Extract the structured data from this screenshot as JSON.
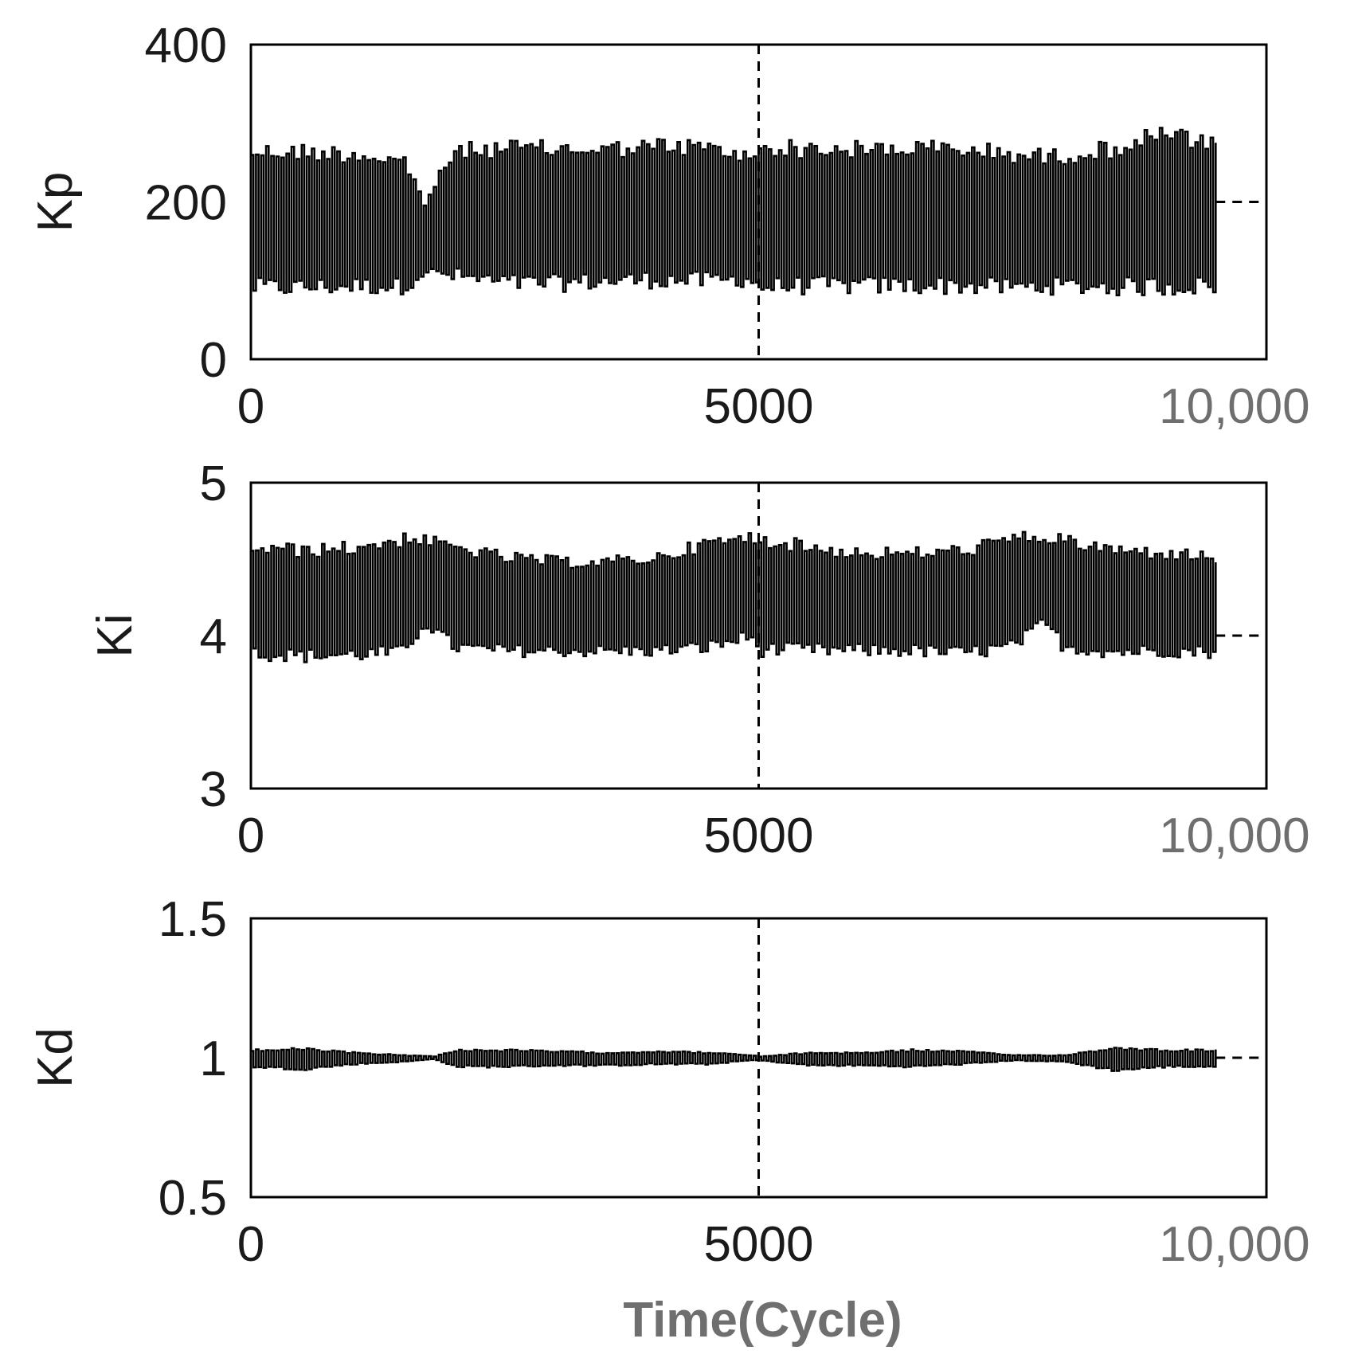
{
  "chart_data": [
    {
      "type": "line",
      "ylabel": "Kp",
      "xlim": [
        0,
        10000
      ],
      "ylim": [
        0,
        400
      ],
      "xticks": [
        "0",
        "5000",
        "10,000"
      ],
      "yticks": [
        "400",
        "200",
        "0"
      ],
      "xtick_values": [
        0,
        5000,
        10000
      ],
      "ytick_values": [
        400,
        200,
        0
      ],
      "vline_x": 5000,
      "hline_y": 200,
      "series": [
        {
          "x_range": [
            0,
            9500
          ],
          "x": [
            0,
            500,
            1000,
            1500,
            1700,
            2000,
            2500,
            3000,
            3500,
            4000,
            4500,
            4900,
            5000,
            5500,
            6000,
            6500,
            7000,
            7500,
            7800,
            8000,
            8500,
            9000,
            9500
          ],
          "max": [
            275,
            275,
            272,
            262,
            205,
            275,
            280,
            278,
            278,
            282,
            280,
            265,
            282,
            278,
            278,
            280,
            278,
            272,
            268,
            270,
            280,
            300,
            280
          ],
          "min": [
            80,
            80,
            82,
            82,
            105,
            95,
            85,
            85,
            88,
            90,
            88,
            92,
            80,
            82,
            82,
            82,
            82,
            80,
            82,
            82,
            80,
            80,
            82
          ]
        }
      ]
    },
    {
      "type": "line",
      "ylabel": "Ki",
      "xlim": [
        0,
        10000
      ],
      "ylim": [
        3,
        5
      ],
      "xticks": [
        "0",
        "5000",
        "10,000"
      ],
      "yticks": [
        "5",
        "4",
        "3"
      ],
      "xtick_values": [
        0,
        5000,
        10000
      ],
      "ytick_values": [
        5,
        4,
        3
      ],
      "vline_x": 5000,
      "hline_y": 4,
      "series": [
        {
          "x_range": [
            0,
            9500
          ],
          "x": [
            0,
            500,
            1000,
            1500,
            1700,
            2000,
            2500,
            3000,
            3500,
            4000,
            4500,
            4900,
            5000,
            5500,
            6000,
            6500,
            7000,
            7500,
            7800,
            8000,
            8500,
            9000,
            9500
          ],
          "max": [
            4.62,
            4.6,
            4.62,
            4.68,
            4.66,
            4.62,
            4.55,
            4.52,
            4.52,
            4.55,
            4.65,
            4.68,
            4.68,
            4.62,
            4.58,
            4.58,
            4.6,
            4.68,
            4.68,
            4.66,
            4.6,
            4.58,
            4.55
          ],
          "min": [
            3.84,
            3.82,
            3.83,
            3.84,
            4.05,
            3.88,
            3.86,
            3.86,
            3.86,
            3.86,
            3.88,
            3.95,
            3.86,
            3.86,
            3.86,
            3.86,
            3.84,
            3.88,
            4.05,
            3.88,
            3.85,
            3.86,
            3.85
          ]
        }
      ]
    },
    {
      "type": "line",
      "ylabel": "Kd",
      "xlabel": "Time(Cycle)",
      "xlim": [
        0,
        10000
      ],
      "ylim": [
        0.5,
        1.5
      ],
      "xticks": [
        "0",
        "5000",
        "10,000"
      ],
      "yticks": [
        "1.5",
        "1",
        "0.5"
      ],
      "xtick_values": [
        0,
        5000,
        10000
      ],
      "ytick_values": [
        1.5,
        1,
        0.5
      ],
      "vline_x": 5000,
      "hline_y": 1,
      "series": [
        {
          "x_range": [
            0,
            9500
          ],
          "x": [
            0,
            500,
            1000,
            1500,
            1800,
            2000,
            2500,
            3000,
            3500,
            4000,
            4500,
            4900,
            5000,
            5500,
            6000,
            6500,
            7000,
            7500,
            8000,
            8500,
            9000,
            9500
          ],
          "max": [
            1.03,
            1.035,
            1.02,
            1.01,
            1.005,
            1.03,
            1.03,
            1.025,
            1.02,
            1.025,
            1.02,
            1.01,
            1.005,
            1.02,
            1.02,
            1.03,
            1.025,
            1.01,
            1.01,
            1.04,
            1.03,
            1.03
          ],
          "min": [
            0.965,
            0.955,
            0.975,
            0.985,
            0.995,
            0.965,
            0.965,
            0.97,
            0.97,
            0.975,
            0.975,
            0.99,
            0.99,
            0.97,
            0.97,
            0.965,
            0.975,
            0.99,
            0.985,
            0.95,
            0.965,
            0.965
          ]
        }
      ]
    }
  ]
}
